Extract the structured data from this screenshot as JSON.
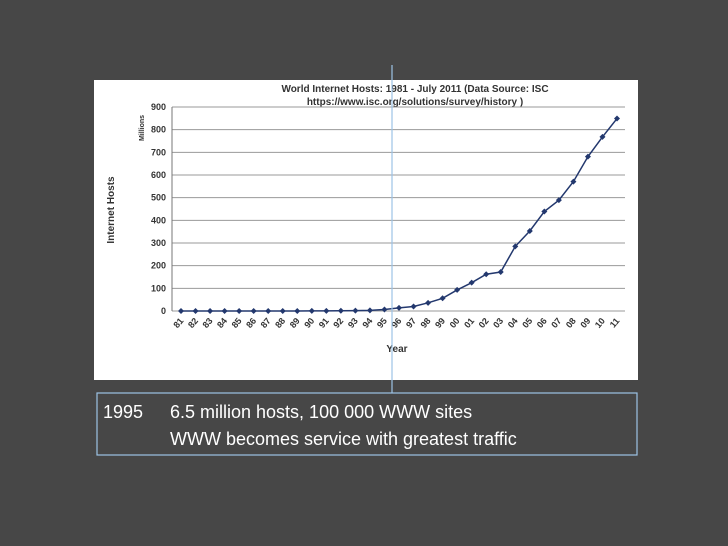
{
  "chart_data": {
    "type": "line",
    "title": "World Internet Hosts: 1981 - July 2011 (Data Source: ISC",
    "subtitle": "https://www.isc.org/solutions/survey/history )",
    "y_label": "Internet Hosts",
    "y_unit": "Millions",
    "x_label": "Year",
    "categories": [
      "81",
      "82",
      "83",
      "84",
      "85",
      "86",
      "87",
      "88",
      "89",
      "90",
      "91",
      "92",
      "93",
      "94",
      "95",
      "96",
      "97",
      "98",
      "99",
      "00",
      "01",
      "02",
      "03",
      "04",
      "05",
      "06",
      "07",
      "08",
      "09",
      "10",
      "11"
    ],
    "series": [
      {
        "name": "Internet Hosts",
        "color": "#23386e",
        "values": [
          0,
          0,
          0,
          0,
          0,
          0,
          0,
          0,
          0.2,
          0.3,
          0.6,
          1,
          1.5,
          3,
          6.5,
          14,
          20,
          36,
          56,
          93,
          125,
          162,
          172,
          285,
          353,
          439,
          489,
          571,
          681,
          768,
          849
        ]
      }
    ],
    "ylim": [
      0,
      900
    ],
    "yticks": [
      0,
      100,
      200,
      300,
      400,
      500,
      600,
      700,
      800,
      900
    ],
    "grid": true
  },
  "slide": {
    "year": "1995",
    "lines": [
      "6.5 million hosts, 100 000 WWW sites",
      "WWW becomes service with greatest traffic"
    ]
  }
}
